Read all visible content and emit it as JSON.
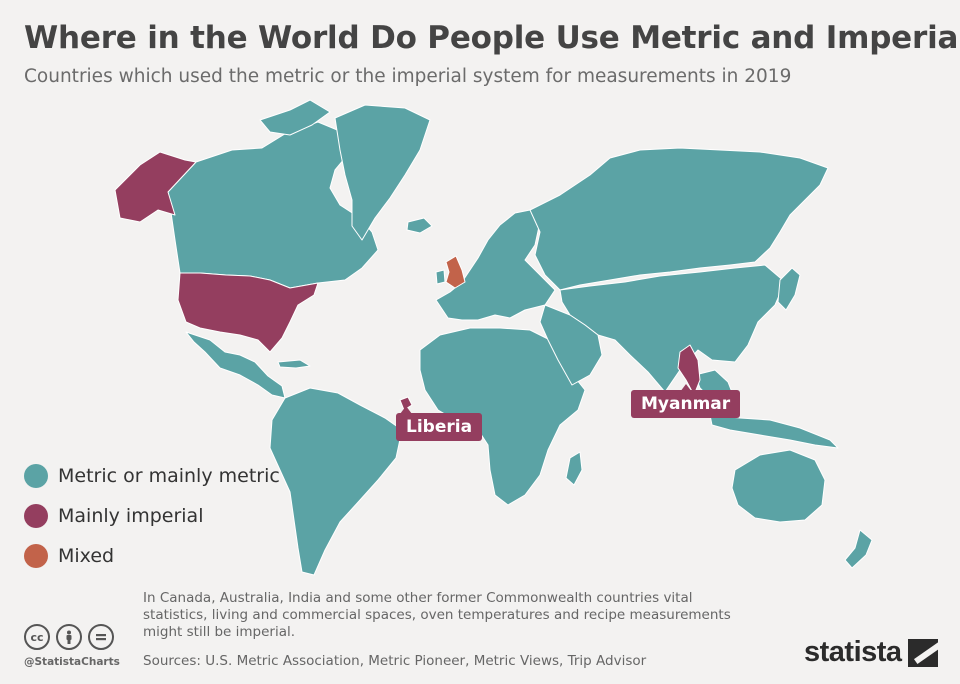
{
  "header": {
    "title": "Where in the World Do People Use Metric and Imperial?",
    "subtitle": "Countries which used the metric or the imperial system for measurements in 2019"
  },
  "colors": {
    "metric": "#5ba3a5",
    "imperial": "#943e5f",
    "mixed": "#c2634a",
    "background": "#f3f2f1",
    "border": "#ffffff"
  },
  "legend": {
    "items": [
      {
        "label": "Metric or mainly metric",
        "color": "#5ba3a5"
      },
      {
        "label": "Mainly imperial",
        "color": "#943e5f"
      },
      {
        "label": "Mixed",
        "color": "#c2634a"
      }
    ]
  },
  "callouts": {
    "liberia": "Liberia",
    "myanmar": "Myanmar"
  },
  "map_data": {
    "imperial": [
      "United States",
      "Liberia",
      "Myanmar"
    ],
    "mixed": [
      "United Kingdom"
    ],
    "metric": "all other countries"
  },
  "footer": {
    "note": "In Canada, Australia, India and some other former Commonwealth countries vital statistics, living and commercial spaces, oven temperatures and recipe measurements might still be imperial.",
    "sources": "Sources: U.S. Metric Association, Metric Pioneer, Metric Views, Trip Advisor",
    "handle": "@StatistaCharts",
    "brand": "statista",
    "license_icons": [
      "cc-icon",
      "by-icon",
      "nd-icon"
    ]
  }
}
